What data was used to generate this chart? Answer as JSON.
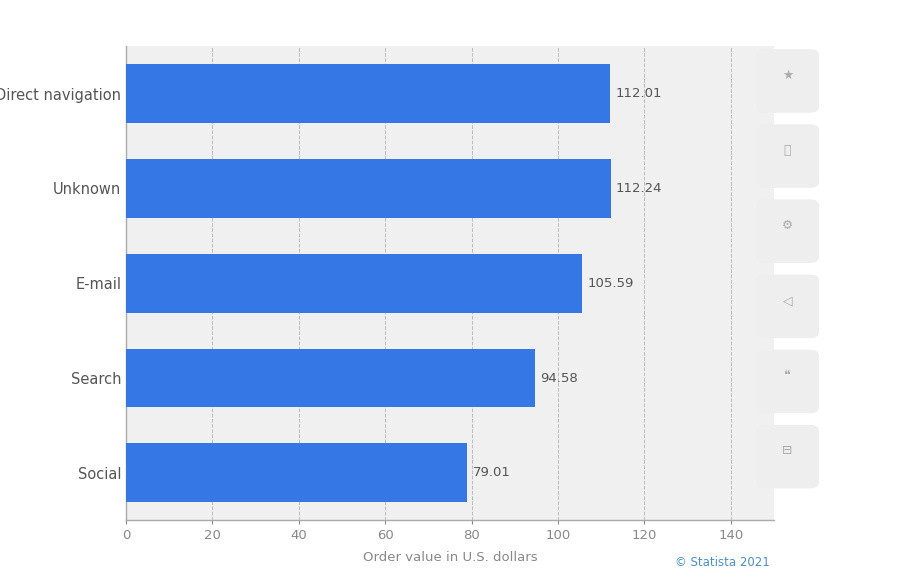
{
  "categories": [
    "Social",
    "Search",
    "E-mail",
    "Unknown",
    "Direct navigation"
  ],
  "values": [
    79.01,
    94.58,
    105.59,
    112.24,
    112.01
  ],
  "bar_color": "#3578e5",
  "background_color": "#ffffff",
  "plot_bg_color": "#f0f0f0",
  "xlabel": "Order value in U.S. dollars",
  "xlim": [
    0,
    150
  ],
  "xticks": [
    0,
    20,
    40,
    60,
    80,
    100,
    120,
    140
  ],
  "label_fontsize": 10.5,
  "tick_fontsize": 9.5,
  "xlabel_fontsize": 9.5,
  "value_label_fontsize": 9.5,
  "value_label_color": "#555555",
  "bar_height": 0.62,
  "grid_color": "#bbbbbb",
  "axis_color": "#aaaaaa",
  "ytick_color": "#555555",
  "xtick_color": "#888888",
  "statista_text": "© Statista 2021",
  "statista_color": "#4a90c4",
  "statista_fontsize": 8.5
}
